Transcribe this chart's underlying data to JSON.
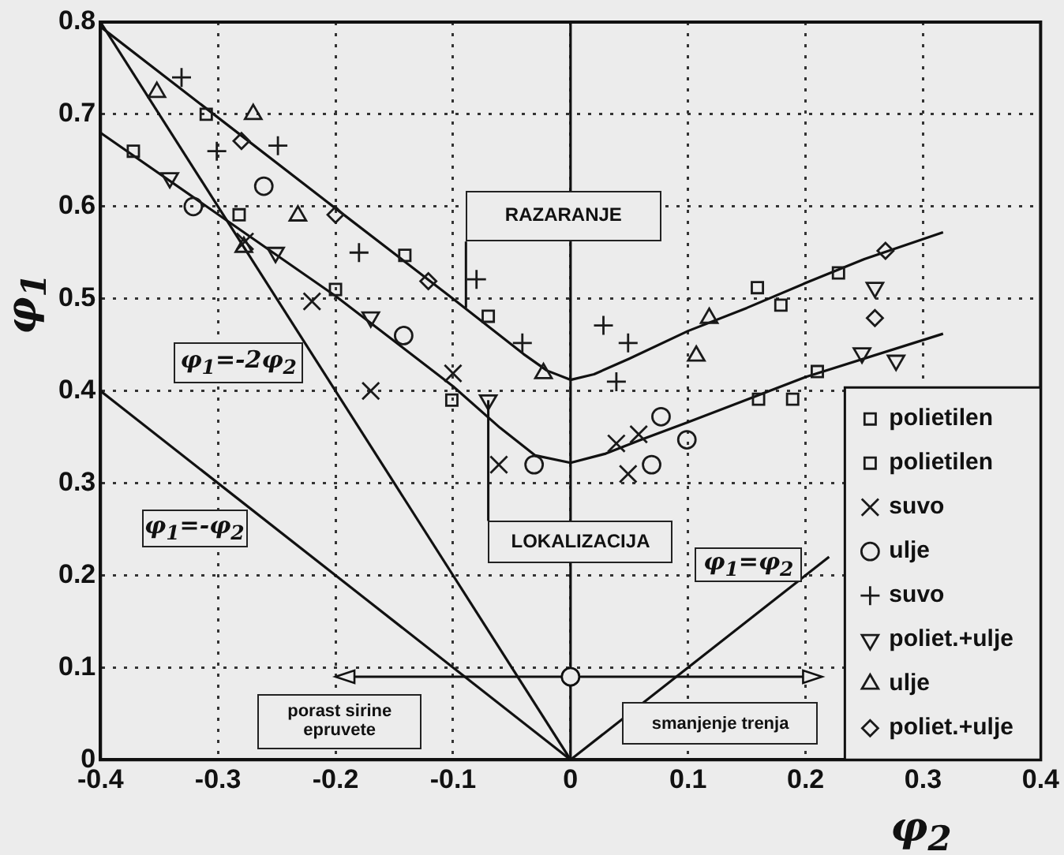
{
  "chart_data": {
    "type": "scatter",
    "xlabel": "φ$_{2}$",
    "ylabel": "φ$_{1}$",
    "xlim": [
      -0.4,
      0.4
    ],
    "ylim": [
      0,
      0.8
    ],
    "xticks": [
      -0.4,
      -0.3,
      -0.2,
      -0.1,
      0,
      0.1,
      0.2,
      0.3,
      0.4
    ],
    "yticks": [
      0,
      0.1,
      0.2,
      0.3,
      0.4,
      0.5,
      0.6,
      0.7,
      0.8
    ],
    "grid": true,
    "legend": "bottom right",
    "ref_lines": [
      {
        "axis": "x",
        "value": 0,
        "color": "#111111",
        "line_style": "solid"
      }
    ],
    "annotations": [
      "RAZARANJE",
      {
        "text": "LOKALIZACIJA",
        "x": -0.07,
        "y": 0.39
      },
      "φ$_{1}$=-2φ$_{2}$",
      "φ$_{1}$=-φ$_{2}$",
      "φ$_{1}$=φ$_{2}$",
      "porast sirine epruvete",
      "smanjenje trenja"
    ],
    "series": [
      {
        "name": "polietilen",
        "type": "scatter",
        "marker": "square",
        "color": "#1a1a1a",
        "x": [
          -0.31,
          -0.141,
          -0.07,
          0.159,
          0.179,
          0.228
        ],
        "values": [
          0.7,
          0.547,
          0.481,
          0.512,
          0.493,
          0.528
        ]
      },
      {
        "name": "polietilen",
        "type": "scatter",
        "marker": "square",
        "color": "#1a1a1a",
        "x": [
          -0.372,
          -0.282,
          -0.2,
          -0.101,
          0.16,
          0.189,
          0.21
        ],
        "values": [
          0.66,
          0.591,
          0.51,
          0.39,
          0.391,
          0.391,
          0.421
        ]
      },
      {
        "name": "suvo",
        "type": "scatter",
        "marker": "cross",
        "color": "#1a1a1a",
        "x": [
          -0.277,
          -0.22,
          -0.17,
          -0.1,
          -0.061,
          0.039,
          0.049,
          0.058
        ],
        "values": [
          0.562,
          0.497,
          0.4,
          0.419,
          0.32,
          0.343,
          0.31,
          0.353
        ]
      },
      {
        "name": "ulje",
        "type": "scatter",
        "marker": "circle",
        "color": "#1a1a1a",
        "x": [
          -0.321,
          -0.261,
          -0.142,
          -0.031,
          0.069,
          0.077,
          0.099
        ],
        "values": [
          0.6,
          0.622,
          0.46,
          0.32,
          0.32,
          0.372,
          0.347
        ]
      },
      {
        "name": "suvo",
        "type": "scatter",
        "marker": "plus",
        "color": "#1a1a1a",
        "x": [
          -0.331,
          -0.301,
          -0.249,
          -0.18,
          -0.08,
          -0.041,
          0.028,
          0.039,
          0.049
        ],
        "values": [
          0.74,
          0.66,
          0.666,
          0.55,
          0.521,
          0.452,
          0.471,
          0.41,
          0.452
        ]
      },
      {
        "name": "poliet.+ulje",
        "type": "scatter",
        "marker": "triangle-down",
        "color": "#1a1a1a",
        "x": [
          -0.341,
          -0.251,
          -0.17,
          -0.07,
          0.248,
          0.259,
          0.277
        ],
        "values": [
          0.631,
          0.55,
          0.48,
          0.39,
          0.441,
          0.512,
          0.433
        ]
      },
      {
        "name": "ulje",
        "type": "scatter",
        "marker": "triangle",
        "color": "#1a1a1a",
        "x": [
          -0.352,
          -0.278,
          -0.27,
          -0.232,
          -0.023,
          0.107,
          0.118
        ],
        "values": [
          0.724,
          0.556,
          0.7,
          0.59,
          0.419,
          0.438,
          0.479
        ]
      },
      {
        "name": "poliet.+ulje",
        "type": "scatter",
        "marker": "diamond",
        "color": "#1a1a1a",
        "x": [
          -0.28,
          -0.2,
          -0.121,
          0.259,
          0.268
        ],
        "values": [
          0.671,
          0.591,
          0.519,
          0.479,
          0.552
        ]
      },
      {
        "type": "line",
        "marker": "none",
        "line_style": "solid",
        "color": "#111111",
        "x": [
          -0.4,
          -0.2,
          -0.1,
          -0.04,
          -0.02,
          0,
          0.02,
          0.05,
          0.1,
          0.15,
          0.2,
          0.25,
          0.317
        ],
        "values": [
          0.795,
          0.598,
          0.5,
          0.44,
          0.422,
          0.412,
          0.418,
          0.435,
          0.465,
          0.49,
          0.517,
          0.543,
          0.572
        ]
      },
      {
        "type": "line",
        "marker": "none",
        "line_style": "solid",
        "color": "#111111",
        "x": [
          -0.4,
          -0.2,
          -0.1,
          -0.06,
          -0.03,
          0,
          0.03,
          0.06,
          0.1,
          0.2,
          0.317
        ],
        "values": [
          0.68,
          0.503,
          0.405,
          0.36,
          0.33,
          0.322,
          0.332,
          0.347,
          0.366,
          0.415,
          0.462
        ]
      },
      {
        "type": "line",
        "marker": "none",
        "line_style": "solid",
        "color": "#111111",
        "x": [
          -0.4,
          0
        ],
        "values": [
          0.8,
          0
        ]
      },
      {
        "type": "line",
        "marker": "none",
        "line_style": "solid",
        "color": "#111111",
        "x": [
          -0.4,
          0
        ],
        "values": [
          0.4,
          0
        ]
      },
      {
        "type": "line",
        "marker": "none",
        "line_style": "solid",
        "color": "#111111",
        "x": [
          0,
          0.22
        ],
        "values": [
          0,
          0.22
        ]
      }
    ]
  }
}
